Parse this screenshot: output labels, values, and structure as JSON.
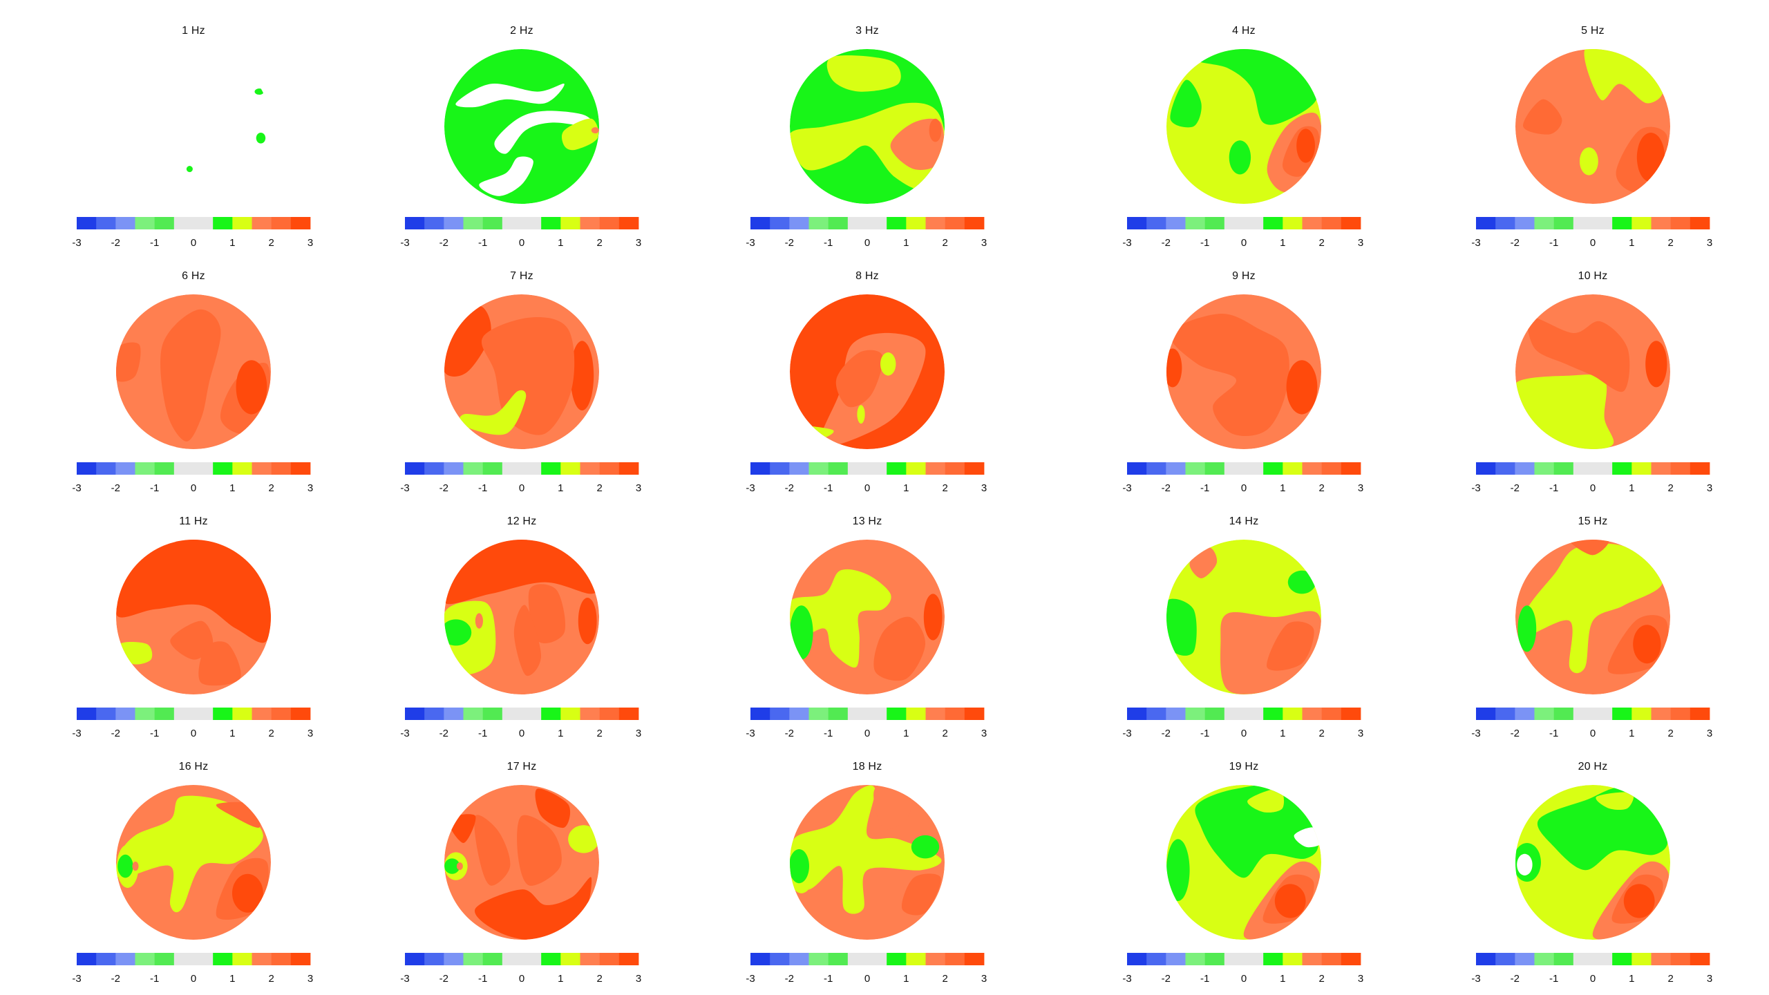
{
  "colorbar": {
    "ticks": [
      "-3",
      "-2",
      "-1",
      "0",
      "1",
      "2",
      "3"
    ],
    "range": [
      -3,
      3
    ],
    "colors": [
      "#1f3de8",
      "#4a68f0",
      "#7b93f5",
      "#7cf07c",
      "#52ea52",
      "#e6e6e6",
      "#e6e6e6",
      "#18f518",
      "#d8ff14",
      "#ff7f50",
      "#ff6a35",
      "#ff4a0c"
    ]
  },
  "palette": {
    "green": "#18f518",
    "yellow": "#d8ff14",
    "orange": "#ff7f50",
    "orange_dark": "#ff6a35",
    "red": "#ff4a0c"
  },
  "chart_data": [
    {
      "type": "heatmap",
      "title": "1 Hz",
      "base": "none",
      "levels_shown": [
        1
      ]
    },
    {
      "type": "heatmap",
      "title": "2 Hz",
      "base": "green",
      "levels_shown": [
        1,
        1.5,
        2
      ]
    },
    {
      "type": "heatmap",
      "title": "3 Hz",
      "base": "green",
      "levels_shown": [
        1,
        1.5,
        2,
        2.5
      ]
    },
    {
      "type": "heatmap",
      "title": "4 Hz",
      "base": "yellow",
      "levels_shown": [
        1,
        1.5,
        2,
        2.5,
        3
      ]
    },
    {
      "type": "heatmap",
      "title": "5 Hz",
      "base": "orange",
      "levels_shown": [
        1.5,
        2,
        2.5,
        3
      ]
    },
    {
      "type": "heatmap",
      "title": "6 Hz",
      "base": "orange",
      "levels_shown": [
        2,
        2.5,
        3
      ]
    },
    {
      "type": "heatmap",
      "title": "7 Hz",
      "base": "orange",
      "levels_shown": [
        1.5,
        2,
        2.5,
        3
      ]
    },
    {
      "type": "heatmap",
      "title": "8 Hz",
      "base": "red",
      "levels_shown": [
        1.5,
        2,
        2.5,
        3
      ]
    },
    {
      "type": "heatmap",
      "title": "9 Hz",
      "base": "orange",
      "levels_shown": [
        1.5,
        2,
        2.5,
        3
      ]
    },
    {
      "type": "heatmap",
      "title": "10 Hz",
      "base": "orange",
      "levels_shown": [
        1.5,
        2,
        2.5,
        3
      ]
    },
    {
      "type": "heatmap",
      "title": "11 Hz",
      "base": "orange",
      "levels_shown": [
        1.5,
        2,
        2.5,
        3
      ]
    },
    {
      "type": "heatmap",
      "title": "12 Hz",
      "base": "orange",
      "levels_shown": [
        1,
        1.5,
        2,
        2.5,
        3
      ]
    },
    {
      "type": "heatmap",
      "title": "13 Hz",
      "base": "orange",
      "levels_shown": [
        1,
        1.5,
        2,
        2.5,
        3
      ]
    },
    {
      "type": "heatmap",
      "title": "14 Hz",
      "base": "yellow",
      "levels_shown": [
        1,
        1.5,
        2,
        2.5,
        3
      ]
    },
    {
      "type": "heatmap",
      "title": "15 Hz",
      "base": "orange",
      "levels_shown": [
        1,
        1.5,
        2,
        2.5,
        3
      ]
    },
    {
      "type": "heatmap",
      "title": "16 Hz",
      "base": "orange",
      "levels_shown": [
        1,
        1.5,
        2,
        2.5,
        3
      ]
    },
    {
      "type": "heatmap",
      "title": "17 Hz",
      "base": "orange",
      "levels_shown": [
        1,
        1.5,
        2,
        2.5,
        3
      ]
    },
    {
      "type": "heatmap",
      "title": "18 Hz",
      "base": "orange",
      "levels_shown": [
        1,
        1.5,
        2,
        2.5
      ]
    },
    {
      "type": "heatmap",
      "title": "19 Hz",
      "base": "yellow",
      "levels_shown": [
        1,
        1.5,
        2,
        2.5,
        3
      ]
    },
    {
      "type": "heatmap",
      "title": "20 Hz",
      "base": "yellow",
      "levels_shown": [
        1,
        1.5,
        2,
        2.5,
        3
      ]
    }
  ]
}
